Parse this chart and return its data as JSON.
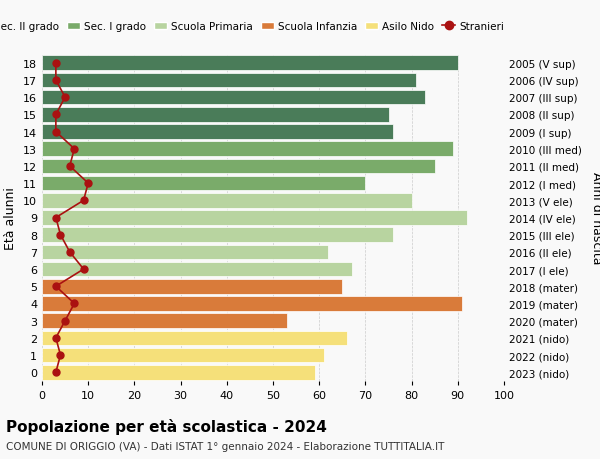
{
  "ages": [
    18,
    17,
    16,
    15,
    14,
    13,
    12,
    11,
    10,
    9,
    8,
    7,
    6,
    5,
    4,
    3,
    2,
    1,
    0
  ],
  "years": [
    "2005 (V sup)",
    "2006 (IV sup)",
    "2007 (III sup)",
    "2008 (II sup)",
    "2009 (I sup)",
    "2010 (III med)",
    "2011 (II med)",
    "2012 (I med)",
    "2013 (V ele)",
    "2014 (IV ele)",
    "2015 (III ele)",
    "2016 (II ele)",
    "2017 (I ele)",
    "2018 (mater)",
    "2019 (mater)",
    "2020 (mater)",
    "2021 (nido)",
    "2022 (nido)",
    "2023 (nido)"
  ],
  "bar_values": [
    90,
    81,
    83,
    75,
    76,
    89,
    85,
    70,
    80,
    92,
    76,
    62,
    67,
    65,
    91,
    53,
    66,
    61,
    59
  ],
  "stranieri": [
    3,
    3,
    5,
    3,
    3,
    7,
    6,
    10,
    9,
    3,
    4,
    6,
    9,
    3,
    7,
    5,
    3,
    4,
    3
  ],
  "bar_colors": [
    "#4a7c59",
    "#4a7c59",
    "#4a7c59",
    "#4a7c59",
    "#4a7c59",
    "#7aab6a",
    "#7aab6a",
    "#7aab6a",
    "#b8d4a0",
    "#b8d4a0",
    "#b8d4a0",
    "#b8d4a0",
    "#b8d4a0",
    "#d97b3a",
    "#d97b3a",
    "#d97b3a",
    "#f5e07a",
    "#f5e07a",
    "#f5e07a"
  ],
  "color_sec2": "#4a7c59",
  "color_sec1": "#7aab6a",
  "color_prim": "#b8d4a0",
  "color_inf": "#d97b3a",
  "color_nido": "#f5e07a",
  "color_stranieri": "#aa1111",
  "title": "Popolazione per età scolastica - 2024",
  "subtitle": "COMUNE DI ORIGGIO (VA) - Dati ISTAT 1° gennaio 2024 - Elaborazione TUTTITALIA.IT",
  "ylabel_left": "Età alunni",
  "ylabel_right": "Anni di nascita",
  "xlim": [
    0,
    100
  ],
  "xticks": [
    0,
    10,
    20,
    30,
    40,
    50,
    60,
    70,
    80,
    90,
    100
  ],
  "bg_color": "#f9f9f9",
  "grid_color": "#cccccc"
}
